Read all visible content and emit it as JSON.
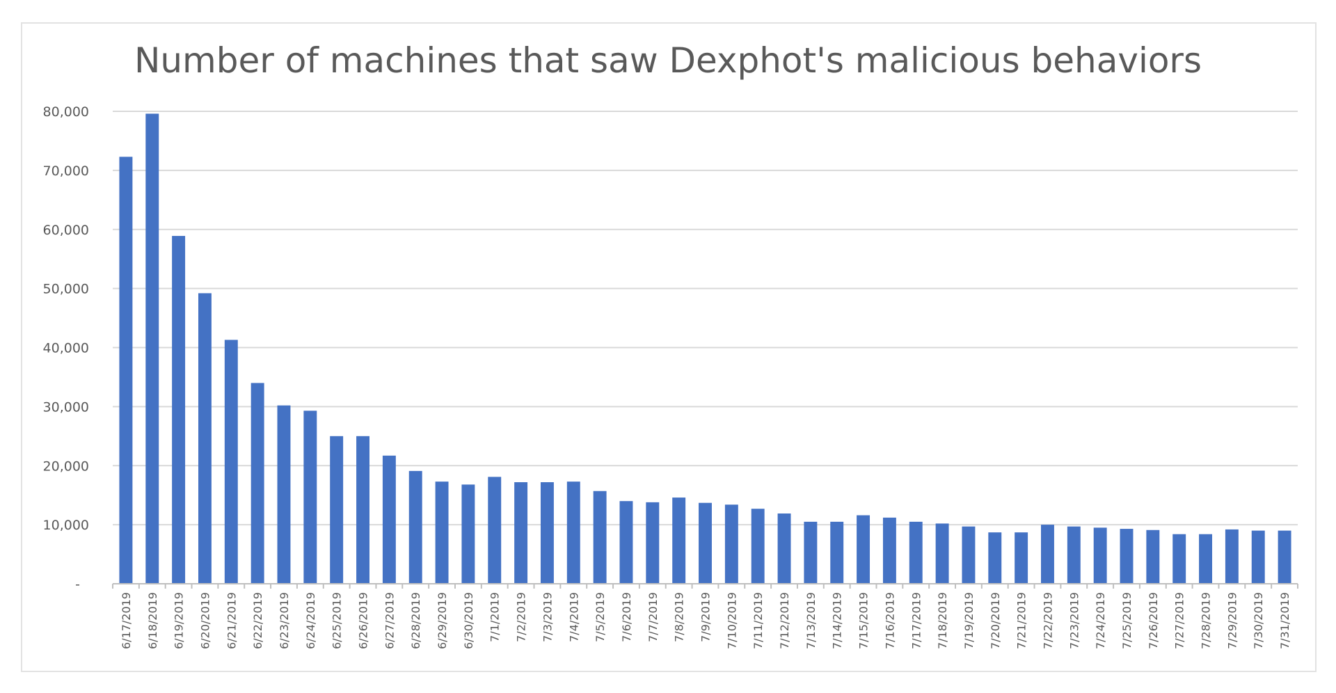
{
  "chart_data": {
    "type": "bar",
    "title": "Number of machines that saw Dexphot's malicious behaviors",
    "xlabel": "",
    "ylabel": "",
    "ylim": [
      0,
      80000
    ],
    "y_ticks": [
      "-",
      "10,000",
      "20,000",
      "30,000",
      "40,000",
      "50,000",
      "60,000",
      "70,000",
      "80,000"
    ],
    "grid": true,
    "legend": "none",
    "bar_color": "#4472c4",
    "categories": [
      "6/17/2019",
      "6/18/2019",
      "6/19/2019",
      "6/20/2019",
      "6/21/2019",
      "6/22/2019",
      "6/23/2019",
      "6/24/2019",
      "6/25/2019",
      "6/26/2019",
      "6/27/2019",
      "6/28/2019",
      "6/29/2019",
      "6/30/2019",
      "7/1/2019",
      "7/2/2019",
      "7/3/2019",
      "7/4/2019",
      "7/5/2019",
      "7/6/2019",
      "7/7/2019",
      "7/8/2019",
      "7/9/2019",
      "7/10/2019",
      "7/11/2019",
      "7/12/2019",
      "7/13/2019",
      "7/14/2019",
      "7/15/2019",
      "7/16/2019",
      "7/17/2019",
      "7/18/2019",
      "7/19/2019",
      "7/20/2019",
      "7/21/2019",
      "7/22/2019",
      "7/23/2019",
      "7/24/2019",
      "7/25/2019",
      "7/26/2019",
      "7/27/2019",
      "7/28/2019",
      "7/29/2019",
      "7/30/2019",
      "7/31/2019"
    ],
    "values": [
      72300,
      79600,
      58900,
      49200,
      41300,
      34000,
      30200,
      29300,
      25000,
      25000,
      21700,
      19100,
      17300,
      16800,
      18100,
      17200,
      17200,
      17300,
      15700,
      14000,
      13800,
      14600,
      13700,
      13400,
      12700,
      11900,
      10500,
      10500,
      11600,
      11200,
      10500,
      10200,
      9700,
      8700,
      8700,
      10000,
      9700,
      9500,
      9300,
      9100,
      8400,
      8400,
      9200,
      9000,
      9000
    ]
  }
}
